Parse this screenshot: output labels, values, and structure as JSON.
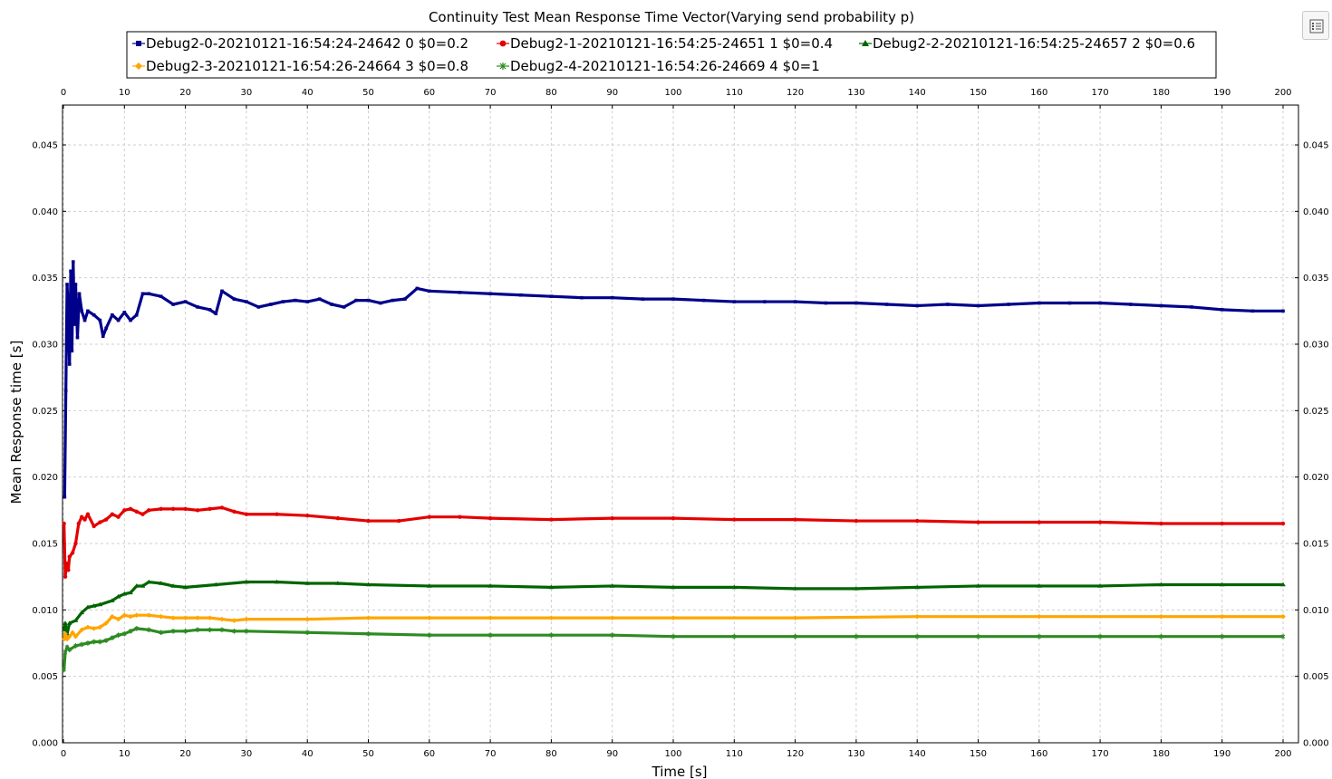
{
  "toolbar": {
    "options_icon": "list-settings-icon"
  },
  "chart_data": {
    "type": "line",
    "title": "Continuity Test Mean Response Time Vector(Varying send probability p)",
    "xlabel": "Time [s]",
    "ylabel": "Mean Response time [s]",
    "xlim": [
      0,
      200
    ],
    "ylim": [
      0,
      0.048
    ],
    "x_ticks": [
      "0",
      "10",
      "20",
      "30",
      "40",
      "50",
      "60",
      "70",
      "80",
      "90",
      "100",
      "110",
      "120",
      "130",
      "140",
      "150",
      "160",
      "170",
      "180",
      "190",
      "200"
    ],
    "y_ticks": [
      "0.000",
      "0.005",
      "0.010",
      "0.015",
      "0.020",
      "0.025",
      "0.030",
      "0.035",
      "0.040",
      "0.045"
    ],
    "grid": true,
    "legend_position": "top",
    "series": [
      {
        "name": "Debug2-0-20210121-16:54:24-24642 0 $0=0.2",
        "color": "#00008B",
        "marker": "square",
        "x": [
          0.2,
          0.4,
          0.6,
          0.8,
          1.0,
          1.2,
          1.4,
          1.6,
          1.8,
          2.0,
          2.3,
          2.6,
          3.0,
          3.5,
          4,
          5,
          6,
          6.5,
          7,
          8,
          9,
          10,
          11,
          12,
          13,
          14,
          16,
          18,
          20,
          22,
          24,
          25,
          26,
          28,
          30,
          32,
          34,
          36,
          38,
          40,
          42,
          44,
          46,
          48,
          50,
          52,
          54,
          56,
          58,
          60,
          65,
          70,
          75,
          80,
          85,
          90,
          95,
          100,
          105,
          110,
          115,
          120,
          125,
          130,
          135,
          140,
          145,
          150,
          155,
          160,
          165,
          170,
          175,
          180,
          185,
          190,
          195,
          200
        ],
        "values": [
          0.0185,
          0.0265,
          0.0345,
          0.0325,
          0.0285,
          0.0355,
          0.0295,
          0.0362,
          0.0315,
          0.0345,
          0.0305,
          0.0338,
          0.0325,
          0.0318,
          0.0325,
          0.0322,
          0.0318,
          0.0306,
          0.0312,
          0.0322,
          0.0318,
          0.0324,
          0.0318,
          0.0322,
          0.0338,
          0.0338,
          0.0336,
          0.033,
          0.0332,
          0.0328,
          0.0326,
          0.0323,
          0.034,
          0.0334,
          0.0332,
          0.0328,
          0.033,
          0.0332,
          0.0333,
          0.0332,
          0.0334,
          0.033,
          0.0328,
          0.0333,
          0.0333,
          0.0331,
          0.0333,
          0.0334,
          0.0342,
          0.034,
          0.0339,
          0.0338,
          0.0337,
          0.0336,
          0.0335,
          0.0335,
          0.0334,
          0.0334,
          0.0333,
          0.0332,
          0.0332,
          0.0332,
          0.0331,
          0.0331,
          0.033,
          0.0329,
          0.033,
          0.0329,
          0.033,
          0.0331,
          0.0331,
          0.0331,
          0.033,
          0.0329,
          0.0328,
          0.0326,
          0.0325,
          0.0325
        ]
      },
      {
        "name": "Debug2-1-20210121-16:54:25-24651 1 $0=0.4",
        "color": "#E50000",
        "marker": "circle",
        "x": [
          0.1,
          0.3,
          0.5,
          0.8,
          1.0,
          1.5,
          2.0,
          2.5,
          3.0,
          3.5,
          4,
          5,
          6,
          7,
          8,
          9,
          10,
          11,
          12,
          13,
          14,
          16,
          18,
          20,
          22,
          24,
          26,
          28,
          30,
          35,
          40,
          45,
          50,
          55,
          60,
          65,
          70,
          80,
          90,
          100,
          110,
          120,
          130,
          140,
          150,
          160,
          170,
          180,
          190,
          200
        ],
        "values": [
          0.0165,
          0.0125,
          0.0135,
          0.013,
          0.014,
          0.0143,
          0.015,
          0.0165,
          0.017,
          0.0168,
          0.0172,
          0.0163,
          0.0166,
          0.0168,
          0.0172,
          0.017,
          0.0175,
          0.0176,
          0.0174,
          0.0172,
          0.0175,
          0.0176,
          0.0176,
          0.0176,
          0.0175,
          0.0176,
          0.0177,
          0.0174,
          0.0172,
          0.0172,
          0.0171,
          0.0169,
          0.0167,
          0.0167,
          0.017,
          0.017,
          0.0169,
          0.0168,
          0.0169,
          0.0169,
          0.0168,
          0.0168,
          0.0167,
          0.0167,
          0.0166,
          0.0166,
          0.0166,
          0.0165,
          0.0165,
          0.0165
        ]
      },
      {
        "name": "Debug2-2-20210121-16:54:25-24657 2 $0=0.6",
        "color": "#006400",
        "marker": "triangle",
        "x": [
          0.1,
          0.3,
          0.6,
          1,
          2,
          3,
          4,
          5,
          6,
          8,
          9,
          10,
          11,
          12,
          13,
          14,
          16,
          18,
          20,
          25,
          30,
          35,
          40,
          45,
          50,
          60,
          70,
          80,
          90,
          100,
          110,
          120,
          130,
          140,
          150,
          160,
          170,
          180,
          190,
          200
        ],
        "values": [
          0.0085,
          0.009,
          0.0082,
          0.009,
          0.0092,
          0.0098,
          0.0102,
          0.0103,
          0.0104,
          0.0107,
          0.011,
          0.0112,
          0.0113,
          0.0118,
          0.0118,
          0.0121,
          0.012,
          0.0118,
          0.0117,
          0.0119,
          0.0121,
          0.0121,
          0.012,
          0.012,
          0.0119,
          0.0118,
          0.0118,
          0.0117,
          0.0118,
          0.0117,
          0.0117,
          0.0116,
          0.0116,
          0.0117,
          0.0118,
          0.0118,
          0.0118,
          0.0119,
          0.0119,
          0.0119
        ]
      },
      {
        "name": "Debug2-3-20210121-16:54:26-24664 3 $0=0.8",
        "color": "#FFA500",
        "marker": "diamond",
        "x": [
          0.1,
          0.3,
          0.6,
          1,
          1.5,
          2,
          3,
          4,
          5,
          6,
          7,
          8,
          9,
          10,
          11,
          12,
          14,
          16,
          18,
          20,
          22,
          24,
          26,
          28,
          30,
          40,
          50,
          60,
          70,
          80,
          90,
          100,
          120,
          140,
          160,
          180,
          190,
          200
        ],
        "values": [
          0.0078,
          0.0082,
          0.0078,
          0.008,
          0.0083,
          0.008,
          0.0085,
          0.0087,
          0.0086,
          0.0087,
          0.009,
          0.0095,
          0.0093,
          0.0096,
          0.0095,
          0.0096,
          0.0096,
          0.0095,
          0.0094,
          0.0094,
          0.0094,
          0.0094,
          0.0093,
          0.0092,
          0.0093,
          0.0093,
          0.0094,
          0.0094,
          0.0094,
          0.0094,
          0.0094,
          0.0094,
          0.0094,
          0.0095,
          0.0095,
          0.0095,
          0.0095,
          0.0095
        ]
      },
      {
        "name": "Debug2-4-20210121-16:54:26-24669 4 $0=1",
        "color": "#2E8B22",
        "marker": "cross",
        "x": [
          0.1,
          0.3,
          0.6,
          1,
          2,
          3,
          4,
          5,
          6,
          7,
          8,
          9,
          10,
          11,
          12,
          14,
          16,
          18,
          20,
          22,
          24,
          26,
          28,
          30,
          40,
          50,
          60,
          70,
          80,
          90,
          100,
          110,
          120,
          130,
          140,
          150,
          160,
          170,
          180,
          190,
          200
        ],
        "values": [
          0.0055,
          0.0068,
          0.0072,
          0.007,
          0.0073,
          0.0074,
          0.0075,
          0.0076,
          0.0076,
          0.0077,
          0.0079,
          0.0081,
          0.0082,
          0.0084,
          0.0086,
          0.0085,
          0.0083,
          0.0084,
          0.0084,
          0.0085,
          0.0085,
          0.0085,
          0.0084,
          0.0084,
          0.0083,
          0.0082,
          0.0081,
          0.0081,
          0.0081,
          0.0081,
          0.008,
          0.008,
          0.008,
          0.008,
          0.008,
          0.008,
          0.008,
          0.008,
          0.008,
          0.008,
          0.008
        ]
      }
    ]
  }
}
